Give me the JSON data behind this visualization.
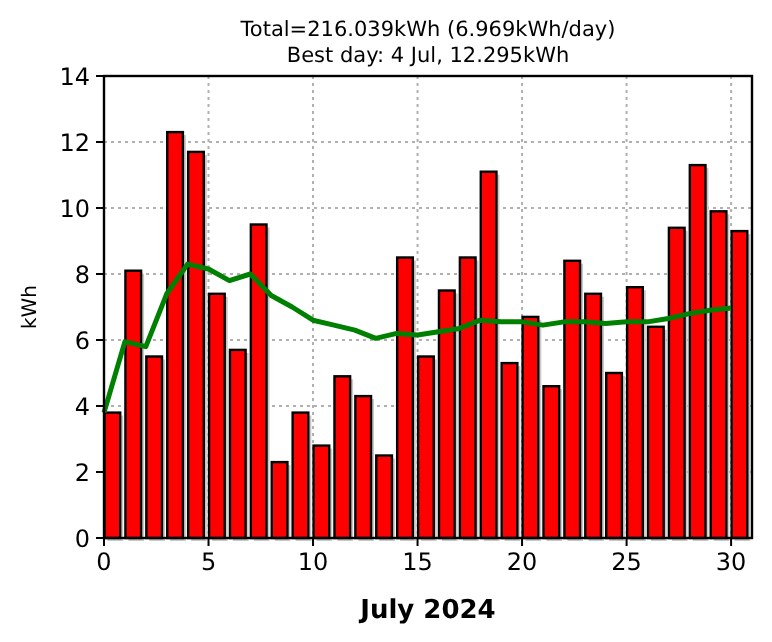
{
  "chart_data": {
    "type": "bar",
    "title": "Total=216.039kWh (6.969kWh/day)",
    "subtitle": "Best day: 4 Jul, 12.295kWh",
    "xlabel": "July 2024",
    "ylabel": "kWh",
    "xlim": [
      0,
      31
    ],
    "xticks": [
      0,
      5,
      10,
      15,
      20,
      25,
      30
    ],
    "ylim": [
      0,
      14
    ],
    "yticks": [
      0,
      2,
      4,
      6,
      8,
      10,
      12,
      14
    ],
    "grid": true,
    "series": [
      {
        "color": "#ff0000",
        "x": [
          0.4,
          1.4,
          2.4,
          3.4,
          4.4,
          5.4,
          6.4,
          7.4,
          8.4,
          9.4,
          10.4,
          11.4,
          12.4,
          13.4,
          14.4,
          15.4,
          16.4,
          17.4,
          18.4,
          19.4,
          20.4,
          21.4,
          22.4,
          23.4,
          24.4,
          25.4,
          26.4,
          27.4,
          28.4,
          29.4,
          30.4
        ],
        "values": [
          3.8,
          8.1,
          5.5,
          12.3,
          11.7,
          7.4,
          5.7,
          9.5,
          2.3,
          3.8,
          2.8,
          4.9,
          4.3,
          2.5,
          8.5,
          5.5,
          7.5,
          8.5,
          11.1,
          5.3,
          6.7,
          4.6,
          8.4,
          7.4,
          5.0,
          7.6,
          6.4,
          9.4,
          11.3,
          9.9,
          9.3
        ]
      },
      {
        "type": "line",
        "color": "#008000",
        "x": [
          0,
          1,
          2,
          3,
          4,
          5,
          6,
          7,
          8,
          9,
          10,
          11,
          12,
          13,
          14,
          15,
          16,
          17,
          18,
          19,
          20,
          21,
          22,
          23,
          24,
          25,
          26,
          27,
          28,
          29,
          30
        ],
        "values": [
          3.8,
          5.95,
          5.8,
          7.4,
          8.3,
          8.15,
          7.8,
          8.0,
          7.35,
          7.0,
          6.6,
          6.45,
          6.3,
          6.05,
          6.2,
          6.15,
          6.25,
          6.35,
          6.6,
          6.55,
          6.55,
          6.45,
          6.55,
          6.55,
          6.5,
          6.55,
          6.55,
          6.65,
          6.8,
          6.9,
          6.97
        ]
      }
    ]
  }
}
